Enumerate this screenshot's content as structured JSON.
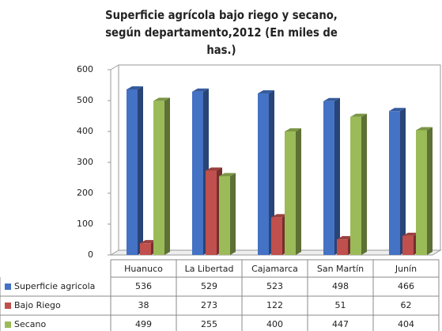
{
  "chart_data": {
    "type": "bar",
    "title": "Superficie agrícola bajo riego y secano, según departamento,2012 (En miles de has.)",
    "categories": [
      "Huanuco",
      "La Libertad",
      "Cajamarca",
      "San Martín",
      "Junín"
    ],
    "series": [
      {
        "name": "Superficie agricola",
        "color": "#4472c4",
        "values": [
          536,
          529,
          523,
          498,
          466
        ]
      },
      {
        "name": "Bajo Riego",
        "color": "#c0504d",
        "values": [
          38,
          273,
          122,
          51,
          62
        ]
      },
      {
        "name": "Secano",
        "color": "#9bbb59",
        "values": [
          499,
          255,
          400,
          447,
          404
        ]
      }
    ],
    "ylim": [
      0,
      600
    ],
    "yticks": [
      0,
      100,
      200,
      300,
      400,
      500,
      600
    ],
    "grid": false
  }
}
